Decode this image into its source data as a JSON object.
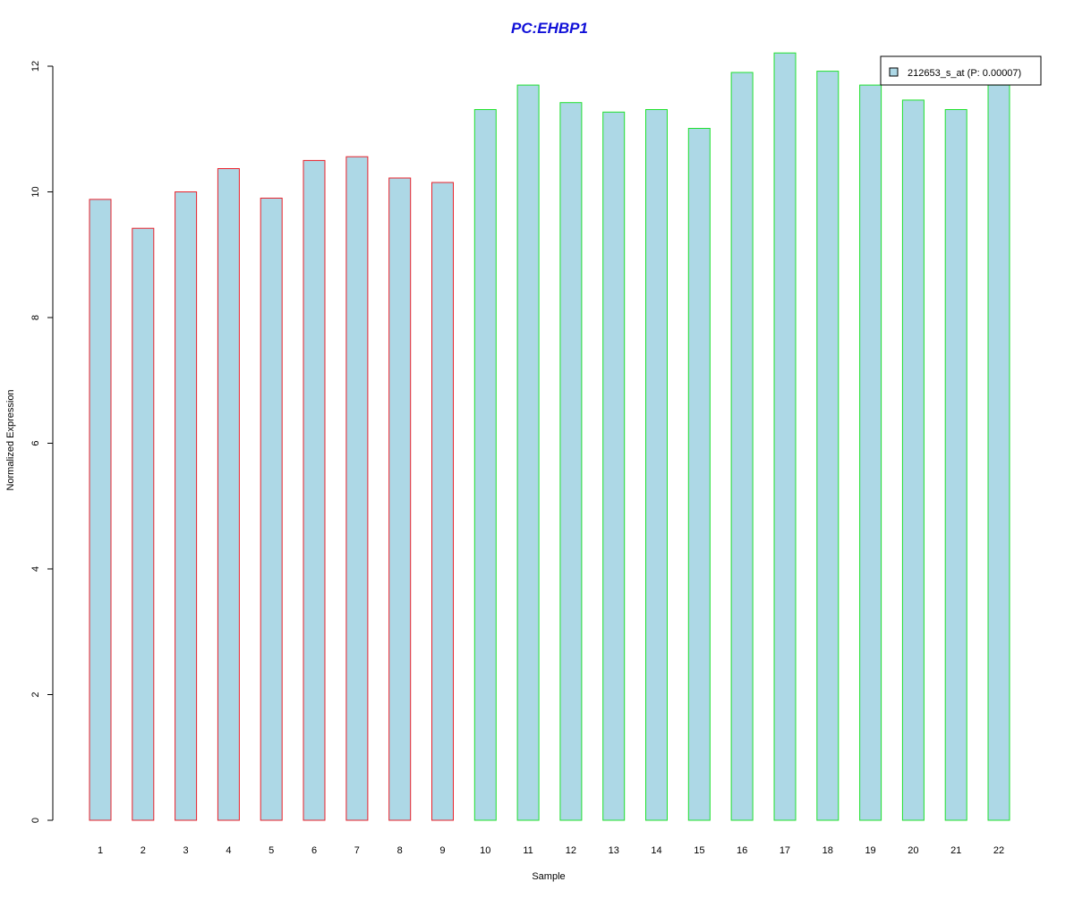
{
  "chart_data": {
    "type": "bar",
    "title": "PC:EHBP1",
    "xlabel": "Sample",
    "ylabel": "Normalized Expression",
    "ylim": [
      0,
      12.2
    ],
    "yticks": [
      0,
      2,
      4,
      6,
      8,
      10,
      12
    ],
    "categories": [
      "1",
      "2",
      "3",
      "4",
      "5",
      "6",
      "7",
      "8",
      "9",
      "10",
      "11",
      "12",
      "13",
      "14",
      "15",
      "16",
      "17",
      "18",
      "19",
      "20",
      "21",
      "22"
    ],
    "series": [
      {
        "name": "212653_s_at (P: 0.00007)",
        "values": [
          9.88,
          9.42,
          10.0,
          10.37,
          9.9,
          10.5,
          10.56,
          10.22,
          10.15,
          11.31,
          11.7,
          11.42,
          11.27,
          11.31,
          11.01,
          11.9,
          12.21,
          11.92,
          11.7,
          11.46,
          11.31,
          11.7
        ]
      }
    ],
    "groups": [
      {
        "samples": [
          "1",
          "2",
          "3",
          "4",
          "5",
          "6",
          "7",
          "8",
          "9"
        ],
        "border_color": "#e8212b"
      },
      {
        "samples": [
          "10",
          "11",
          "12",
          "13",
          "14",
          "15",
          "16",
          "17",
          "18",
          "19",
          "20",
          "21",
          "22"
        ],
        "border_color": "#1fe02e"
      }
    ],
    "colors": {
      "bar_fill": "#add8e6",
      "title": "#1010d8",
      "axis": "#000000"
    },
    "grid": false,
    "legend_position": "top-right"
  }
}
